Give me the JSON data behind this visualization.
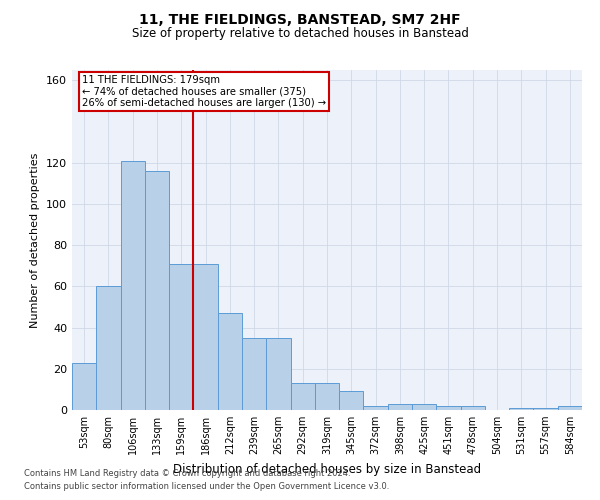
{
  "title1": "11, THE FIELDINGS, BANSTEAD, SM7 2HF",
  "title2": "Size of property relative to detached houses in Banstead",
  "xlabel": "Distribution of detached houses by size in Banstead",
  "ylabel": "Number of detached properties",
  "bar_labels": [
    "53sqm",
    "80sqm",
    "106sqm",
    "133sqm",
    "159sqm",
    "186sqm",
    "212sqm",
    "239sqm",
    "265sqm",
    "292sqm",
    "319sqm",
    "345sqm",
    "372sqm",
    "398sqm",
    "425sqm",
    "451sqm",
    "478sqm",
    "504sqm",
    "531sqm",
    "557sqm",
    "584sqm"
  ],
  "bar_values": [
    23,
    60,
    121,
    116,
    71,
    71,
    47,
    35,
    35,
    13,
    13,
    9,
    2,
    3,
    3,
    2,
    2,
    0,
    1,
    1,
    2
  ],
  "bar_color": "#b8d0e8",
  "bar_edge_color": "#5b9bd5",
  "grid_color": "#d0d8e8",
  "bg_color": "#edf2fa",
  "vline_x_index": 5,
  "vline_color": "#cc0000",
  "annotation_line1": "11 THE FIELDINGS: 179sqm",
  "annotation_line2": "← 74% of detached houses are smaller (375)",
  "annotation_line3": "26% of semi-detached houses are larger (130) →",
  "annotation_box_color": "#cc0000",
  "ylim": [
    0,
    165
  ],
  "yticks": [
    0,
    20,
    40,
    60,
    80,
    100,
    120,
    160
  ],
  "footer1": "Contains HM Land Registry data © Crown copyright and database right 2024.",
  "footer2": "Contains public sector information licensed under the Open Government Licence v3.0."
}
